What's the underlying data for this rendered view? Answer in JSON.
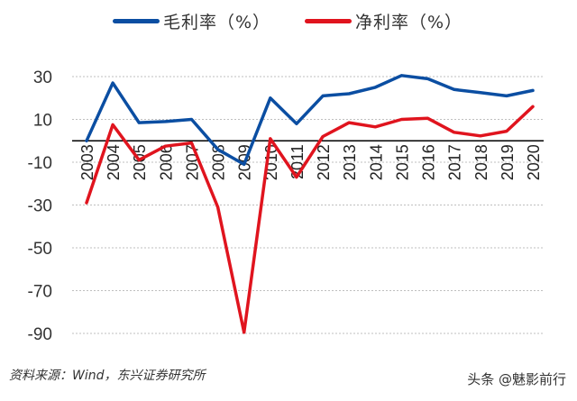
{
  "chart_data": {
    "type": "line",
    "title": "",
    "xlabel": "",
    "ylabel": "",
    "x": [
      "2003",
      "2004",
      "2005",
      "2006",
      "2007",
      "2008",
      "2009",
      "2010",
      "2011",
      "2012",
      "2013",
      "2014",
      "2015",
      "2016",
      "2017",
      "2018",
      "2019",
      "2020"
    ],
    "series": [
      {
        "name": "毛利率（%）",
        "color": "#0b4ea2",
        "values": [
          0,
          27,
          8.5,
          9,
          10,
          -4,
          -11,
          20,
          8,
          21,
          22,
          25,
          30.5,
          29,
          24,
          22.5,
          21,
          23.5
        ]
      },
      {
        "name": "净利率（%）",
        "color": "#e0141e",
        "values": [
          -29,
          7.5,
          -9,
          -2.5,
          -1,
          -31,
          -89.5,
          1,
          -17,
          2,
          8.5,
          6.5,
          10,
          10.5,
          4,
          2.3,
          4.5,
          16
        ]
      }
    ],
    "yticks": [
      30,
      10,
      -10,
      -30,
      -50,
      -70,
      -90
    ],
    "ylim": [
      -90,
      30
    ],
    "grid": "dotted horizontal",
    "legend_position": "top",
    "x_tick_rotation": -90
  },
  "legend": {
    "items": [
      {
        "label": "毛利率（%）",
        "color": "#0b4ea2"
      },
      {
        "label": "净利率（%）",
        "color": "#e0141e"
      }
    ]
  },
  "footer": {
    "source": "资料来源：Wind，东兴证券研究所",
    "watermark": "头条 @魅影前行"
  }
}
